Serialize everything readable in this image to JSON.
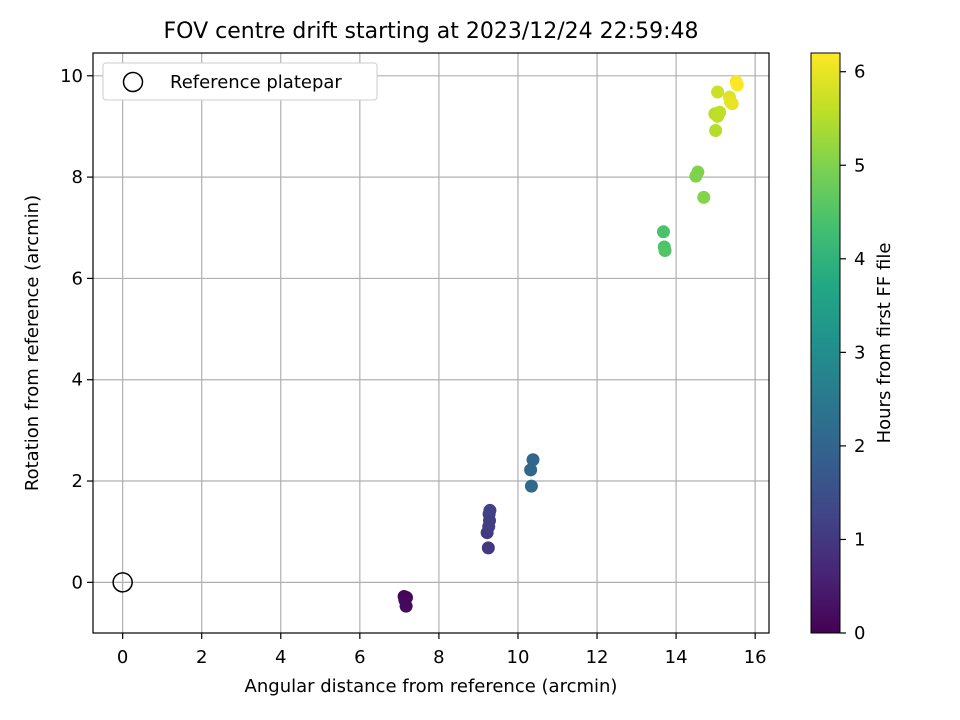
{
  "chart_data": {
    "type": "scatter",
    "title": "FOV centre drift starting at 2023/12/24 22:59:48",
    "xlabel": "Angular distance from reference (arcmin)",
    "ylabel": "Rotation from reference (arcmin)",
    "xlim": [
      -0.75,
      16.35
    ],
    "ylim": [
      -1.0,
      10.45
    ],
    "xticks": [
      0,
      2,
      4,
      6,
      8,
      10,
      12,
      14,
      16
    ],
    "yticks": [
      0,
      2,
      4,
      6,
      8,
      10
    ],
    "grid": true,
    "legend": {
      "position": "top-left",
      "entries": [
        {
          "label": "Reference platepar",
          "marker": "open-circle"
        }
      ]
    },
    "reference_point": {
      "x": 0,
      "y": 0
    },
    "colorbar": {
      "label": "Hours from first FF file",
      "colormap": "viridis",
      "range": [
        0,
        6.2
      ],
      "ticks": [
        0,
        1,
        2,
        3,
        4,
        5,
        6
      ]
    },
    "points": [
      {
        "x": 7.12,
        "y": -0.28,
        "hours": 0.05
      },
      {
        "x": 7.18,
        "y": -0.3,
        "hours": 0.08
      },
      {
        "x": 7.14,
        "y": -0.35,
        "hours": 0.1
      },
      {
        "x": 7.17,
        "y": -0.47,
        "hours": 0.15
      },
      {
        "x": 9.25,
        "y": 0.68,
        "hours": 1.0
      },
      {
        "x": 9.22,
        "y": 0.98,
        "hours": 1.05
      },
      {
        "x": 9.26,
        "y": 1.1,
        "hours": 1.1
      },
      {
        "x": 9.28,
        "y": 1.22,
        "hours": 1.12
      },
      {
        "x": 9.27,
        "y": 1.35,
        "hours": 1.15
      },
      {
        "x": 9.29,
        "y": 1.42,
        "hours": 1.2
      },
      {
        "x": 10.38,
        "y": 2.42,
        "hours": 2.0
      },
      {
        "x": 10.32,
        "y": 2.22,
        "hours": 2.05
      },
      {
        "x": 10.34,
        "y": 1.9,
        "hours": 2.1
      },
      {
        "x": 13.68,
        "y": 6.92,
        "hours": 4.4
      },
      {
        "x": 13.7,
        "y": 6.62,
        "hours": 4.45
      },
      {
        "x": 13.72,
        "y": 6.55,
        "hours": 4.5
      },
      {
        "x": 14.55,
        "y": 8.1,
        "hours": 5.0
      },
      {
        "x": 14.5,
        "y": 8.02,
        "hours": 5.02
      },
      {
        "x": 14.7,
        "y": 7.6,
        "hours": 5.05
      },
      {
        "x": 15.0,
        "y": 8.92,
        "hours": 5.5
      },
      {
        "x": 14.98,
        "y": 9.25,
        "hours": 5.55
      },
      {
        "x": 15.1,
        "y": 9.28,
        "hours": 5.6
      },
      {
        "x": 15.05,
        "y": 9.2,
        "hours": 5.6
      },
      {
        "x": 15.05,
        "y": 9.68,
        "hours": 5.7
      },
      {
        "x": 15.35,
        "y": 9.58,
        "hours": 5.9
      },
      {
        "x": 15.38,
        "y": 9.48,
        "hours": 5.95
      },
      {
        "x": 15.42,
        "y": 9.45,
        "hours": 6.0
      },
      {
        "x": 15.52,
        "y": 9.88,
        "hours": 6.15
      },
      {
        "x": 15.55,
        "y": 9.82,
        "hours": 6.2
      }
    ]
  }
}
